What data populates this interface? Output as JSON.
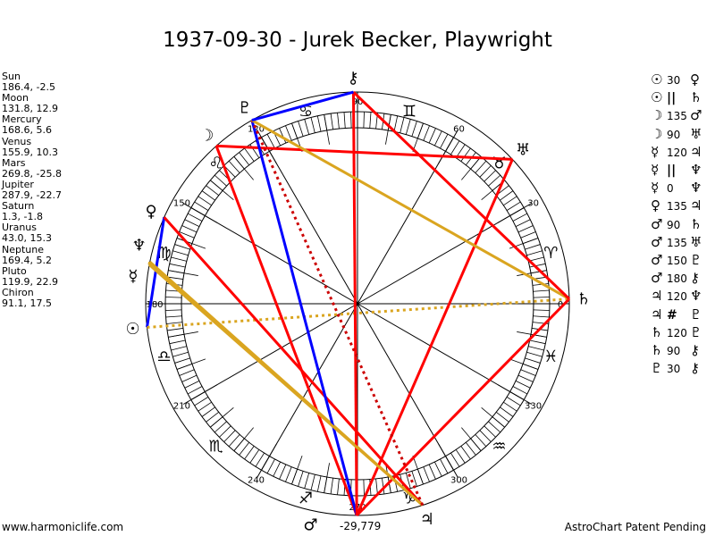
{
  "title": "1937-09-30 - Jurek Becker, Playwright",
  "planets": [
    {
      "name": "Sun",
      "pos": "186.4, -2.5",
      "lon": 186.4,
      "glyph": "☉"
    },
    {
      "name": "Moon",
      "pos": "131.8, 12.9",
      "lon": 131.8,
      "glyph": "☽"
    },
    {
      "name": "Mercury",
      "pos": "168.6, 5.6",
      "lon": 168.6,
      "glyph": "☿"
    },
    {
      "name": "Venus",
      "pos": "155.9, 10.3",
      "lon": 155.9,
      "glyph": "♀"
    },
    {
      "name": "Mars",
      "pos": "269.8, -25.8",
      "lon": 269.8,
      "glyph": "♂"
    },
    {
      "name": "Jupiter",
      "pos": "287.9, -22.7",
      "lon": 287.9,
      "glyph": "♃"
    },
    {
      "name": "Saturn",
      "pos": "1.3, -1.8",
      "lon": 1.3,
      "glyph": "♄"
    },
    {
      "name": "Uranus",
      "pos": "43.0, 15.3",
      "lon": 43.0,
      "glyph": "♅"
    },
    {
      "name": "Neptune",
      "pos": "169.4, 5.2",
      "lon": 169.4,
      "glyph": "♆"
    },
    {
      "name": "Pluto",
      "pos": "119.9, 22.9",
      "lon": 119.9,
      "glyph": "♇"
    },
    {
      "name": "Chiron",
      "pos": "91.1, 17.5",
      "lon": 91.1,
      "glyph": "⚷"
    }
  ],
  "aspects": [
    {
      "p1": "☉",
      "aspect": "30",
      "p2": "♀",
      "from": 0,
      "to": 3,
      "color": "#0000ff",
      "style": "solid"
    },
    {
      "p1": "☉",
      "aspect": "||",
      "p2": "♄",
      "from": 0,
      "to": 6,
      "color": "#daa520",
      "style": "dotted"
    },
    {
      "p1": "☽",
      "aspect": "135",
      "p2": "♂",
      "from": 1,
      "to": 4,
      "color": "#ff0000",
      "style": "solid"
    },
    {
      "p1": "☽",
      "aspect": "90",
      "p2": "♅",
      "from": 1,
      "to": 7,
      "color": "#ff0000",
      "style": "solid"
    },
    {
      "p1": "☿",
      "aspect": "120",
      "p2": "♃",
      "from": 2,
      "to": 5,
      "color": "#daa520",
      "style": "solid"
    },
    {
      "p1": "☿",
      "aspect": "||",
      "p2": "♆",
      "from": 2,
      "to": 8,
      "color": "#daa520",
      "style": "dotted"
    },
    {
      "p1": "☿",
      "aspect": "0",
      "p2": "♆",
      "from": 2,
      "to": 8,
      "color": "#daa520",
      "style": "solid"
    },
    {
      "p1": "♀",
      "aspect": "135",
      "p2": "♃",
      "from": 3,
      "to": 5,
      "color": "#ff0000",
      "style": "solid"
    },
    {
      "p1": "♂",
      "aspect": "90",
      "p2": "♄",
      "from": 4,
      "to": 6,
      "color": "#ff0000",
      "style": "solid"
    },
    {
      "p1": "♂",
      "aspect": "135",
      "p2": "♅",
      "from": 4,
      "to": 7,
      "color": "#ff0000",
      "style": "solid"
    },
    {
      "p1": "♂",
      "aspect": "150",
      "p2": "♇",
      "from": 4,
      "to": 9,
      "color": "#0000ff",
      "style": "solid"
    },
    {
      "p1": "♂",
      "aspect": "180",
      "p2": "⚷",
      "from": 4,
      "to": 10,
      "color": "#ff0000",
      "style": "solid"
    },
    {
      "p1": "♃",
      "aspect": "120",
      "p2": "♆",
      "from": 5,
      "to": 8,
      "color": "#daa520",
      "style": "solid"
    },
    {
      "p1": "♃",
      "aspect": "#",
      "p2": "♇",
      "from": 5,
      "to": 9,
      "color": "#cc0000",
      "style": "dotted"
    },
    {
      "p1": "♄",
      "aspect": "120",
      "p2": "♇",
      "from": 6,
      "to": 9,
      "color": "#daa520",
      "style": "solid"
    },
    {
      "p1": "♄",
      "aspect": "90",
      "p2": "⚷",
      "from": 6,
      "to": 10,
      "color": "#ff0000",
      "style": "solid"
    },
    {
      "p1": "♇",
      "aspect": "30",
      "p2": "⚷",
      "from": 9,
      "to": 10,
      "color": "#0000ff",
      "style": "solid"
    }
  ],
  "signs": [
    "♈",
    "♉",
    "♊",
    "♋",
    "♌",
    "♍",
    "♎",
    "♏",
    "♐",
    "♑",
    "♒",
    "♓"
  ],
  "degree_labels": [
    "0",
    "30",
    "60",
    "90",
    "120",
    "150",
    "180",
    "210",
    "240",
    "270",
    "300",
    "330"
  ],
  "coordinate_readout": "-29,779",
  "footer": {
    "left": "www.harmoniclife.com",
    "right": "AstroChart Patent Pending"
  }
}
